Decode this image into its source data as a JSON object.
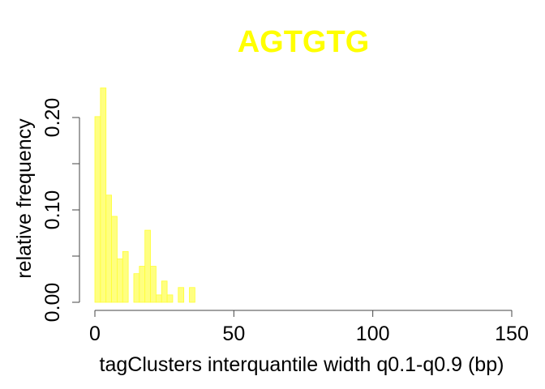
{
  "chart_data": {
    "type": "bar",
    "title": "AGTGTG",
    "xlabel": "tagClusters interquantile width q0.1-q0.9 (bp)",
    "ylabel": "relative frequency",
    "xlim": [
      0,
      150
    ],
    "ylim": [
      0,
      0.2
    ],
    "x_ticks": [
      0,
      50,
      100,
      150
    ],
    "y_ticks": [
      0,
      0.05,
      0.1,
      0.15,
      0.2
    ],
    "y_tick_labels": [
      "0.00",
      "",
      "0.10",
      "",
      "0.20"
    ],
    "bin_width": 2,
    "bins_start": [
      0,
      2,
      4,
      6,
      8,
      10,
      12,
      14,
      16,
      18,
      20,
      22,
      24,
      26,
      28,
      30,
      32,
      34
    ],
    "values": [
      0.201,
      0.232,
      0.116,
      0.093,
      0.047,
      0.055,
      0,
      0.031,
      0.039,
      0.078,
      0.039,
      0.008,
      0.023,
      0.008,
      0,
      0.016,
      0,
      0.016
    ],
    "grid": false,
    "legend": "none",
    "colors": {
      "bar_fill": "#FFFF80",
      "bar_stroke": "#FFFF33",
      "title": "#FFFF00"
    }
  }
}
